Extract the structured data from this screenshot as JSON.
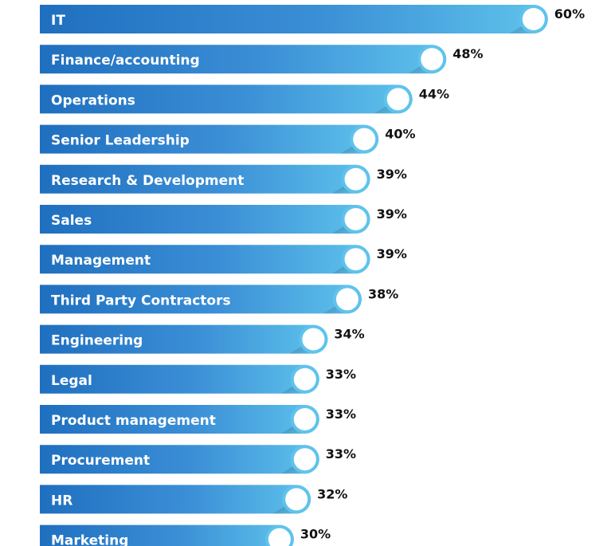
{
  "chart_data": {
    "type": "bar",
    "orientation": "horizontal",
    "categories": [
      "IT",
      "Finance/accounting",
      "Operations",
      "Senior Leadership",
      "Research & Development",
      "Sales",
      "Management",
      "Third Party Contractors",
      "Engineering",
      "Legal",
      "Product management",
      "Procurement",
      "HR",
      "Marketing"
    ],
    "values": [
      60,
      48,
      44,
      40,
      39,
      39,
      39,
      38,
      34,
      33,
      33,
      33,
      32,
      30
    ],
    "value_labels": [
      "60%",
      "48%",
      "44%",
      "40%",
      "39%",
      "39%",
      "39%",
      "38%",
      "34%",
      "33%",
      "33%",
      "33%",
      "32%",
      "30%"
    ],
    "unit": "%",
    "title": "",
    "xlabel": "",
    "ylabel": "",
    "grid": false,
    "legend": "none",
    "colors": {
      "bar_start": "#1f6fbf",
      "bar_end": "#5fc3ec",
      "ring": "#5fc3ec",
      "knob": "#ffffff",
      "bar_text": "#ffffff",
      "value_text": "#111111"
    }
  }
}
